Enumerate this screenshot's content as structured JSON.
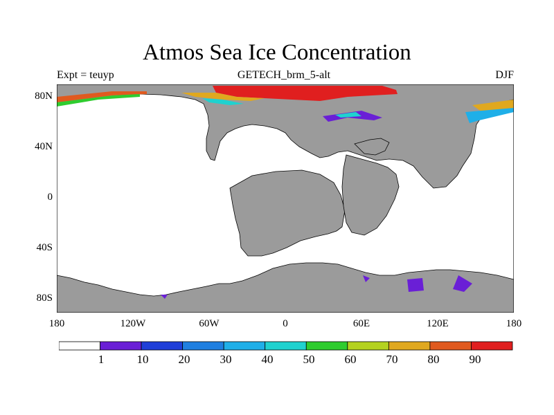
{
  "title": "Atmos Sea Ice Concentration",
  "left_subtitle": "Expt = teuyp",
  "center_subtitle": "GETECH_brm_5-alt",
  "right_subtitle": "DJF",
  "y_ticks": [
    "80N",
    "40N",
    "0",
    "40S",
    "80S"
  ],
  "x_ticks": [
    "180",
    "120W",
    "60W",
    "0",
    "60E",
    "120E",
    "180"
  ],
  "colorbar": {
    "labels": [
      "1",
      "10",
      "20",
      "30",
      "40",
      "50",
      "60",
      "70",
      "80",
      "90"
    ],
    "colors": [
      "#ffffff",
      "#6a1fd6",
      "#1f3fd8",
      "#1f7fe0",
      "#1fafe8",
      "#1fd2cf",
      "#2fcc2f",
      "#b4d21f",
      "#e0a81f",
      "#e05a1f",
      "#e01f1f"
    ]
  },
  "map": {
    "land_color": "#9b9b9b",
    "ocean_color": "#ffffff",
    "projection": "cylindrical equidistant",
    "lon_range": [
      -180,
      180
    ],
    "lat_range": [
      -90,
      90
    ]
  }
}
